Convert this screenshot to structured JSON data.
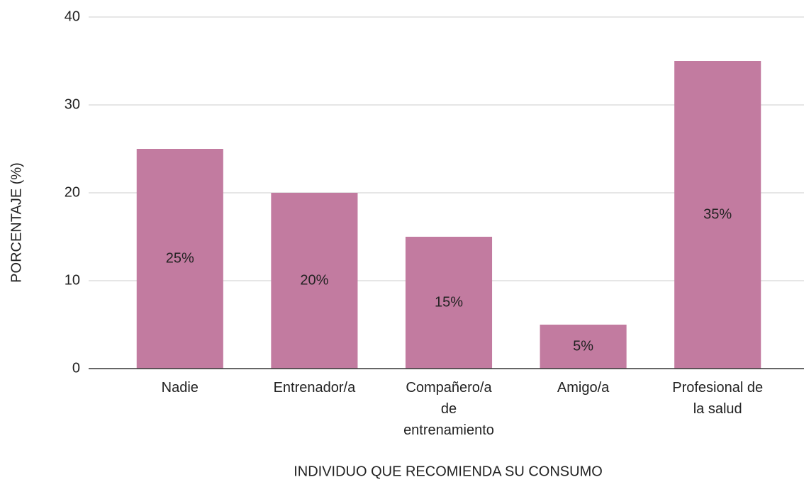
{
  "chart_data": {
    "type": "bar",
    "categories": [
      "Nadie",
      "Entrenador/a",
      "Compañero/a de entrenamiento",
      "Amigo/a",
      "Profesional de la salud"
    ],
    "values": [
      25,
      20,
      15,
      5,
      35
    ],
    "value_labels": [
      "25%",
      "20%",
      "15%",
      "5%",
      "35%"
    ],
    "color": "#c27ba0",
    "x_label": "INDIVIDUO QUE RECOMIENDA SU CONSUMO",
    "y_label": "PORCENTAJE (%)",
    "ylim": [
      0,
      40
    ],
    "yticks": [
      0,
      10,
      20,
      30,
      40
    ],
    "grid": true
  }
}
